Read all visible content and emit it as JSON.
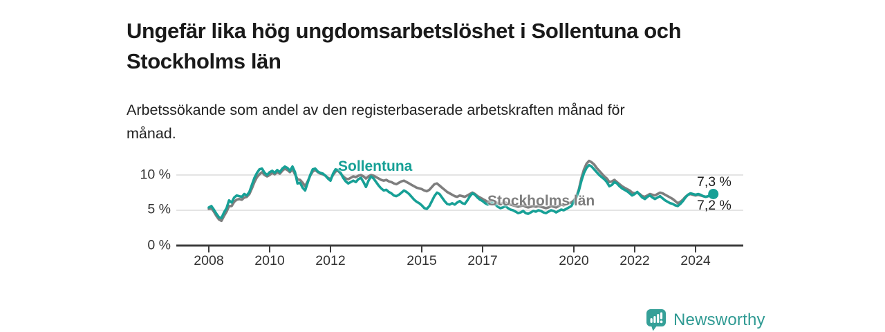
{
  "header": {
    "title": "Ungefär lika hög ungdomsarbetslöshet i Sollentuna och Stockholms län",
    "subtitle": "Arbetssökande som andel av den registerbaserade arbetskraften månad för månad."
  },
  "chart_data": {
    "type": "line",
    "unit": "%",
    "x_start": "2008-01",
    "x_frequency": "monthly",
    "x_tick_labels": [
      "2008",
      "2010",
      "2012",
      "2015",
      "2017",
      "2020",
      "2022",
      "2024"
    ],
    "x_tick_years": [
      2008,
      2010,
      2012,
      2015,
      2017,
      2020,
      2022,
      2024
    ],
    "y_tick_labels": [
      "0 %",
      "5 %",
      "10 %"
    ],
    "y_ticks": [
      0,
      5,
      10
    ],
    "ylim": [
      0,
      12.5
    ],
    "grid": "horizontal",
    "legend_position": "inline-labels",
    "series": [
      {
        "name": "Sollentuna",
        "color": "#17a096",
        "end_label": "7,3 %",
        "end_value": 7.3,
        "end_marker": "dot",
        "values": [
          5.4,
          5.6,
          5.1,
          4.5,
          4.0,
          3.9,
          4.7,
          5.3,
          6.4,
          6.1,
          6.8,
          7.1,
          7.0,
          6.9,
          7.3,
          7.1,
          7.6,
          8.6,
          9.6,
          10.3,
          10.8,
          10.9,
          10.3,
          10.0,
          10.4,
          10.6,
          10.3,
          10.7,
          10.4,
          10.9,
          11.2,
          11.0,
          10.6,
          11.2,
          10.4,
          8.8,
          8.9,
          8.2,
          7.8,
          8.9,
          10.0,
          10.8,
          10.9,
          10.5,
          10.3,
          10.2,
          9.9,
          9.5,
          9.2,
          10.2,
          10.8,
          10.7,
          10.3,
          9.6,
          9.1,
          8.8,
          9.0,
          9.2,
          9.0,
          9.4,
          9.6,
          9.0,
          8.3,
          9.2,
          9.8,
          9.5,
          9.0,
          8.5,
          8.1,
          7.8,
          7.9,
          7.6,
          7.4,
          7.1,
          7.0,
          7.2,
          7.5,
          7.8,
          7.6,
          7.3,
          6.9,
          6.5,
          6.2,
          6.0,
          5.7,
          5.3,
          5.2,
          5.6,
          6.3,
          7.0,
          7.5,
          7.3,
          6.8,
          6.3,
          5.9,
          5.8,
          6.0,
          5.8,
          6.1,
          6.3,
          6.0,
          5.9,
          6.4,
          7.0,
          7.4,
          7.2,
          6.8,
          6.5,
          6.3,
          6.0,
          5.8,
          5.9,
          6.1,
          5.8,
          5.5,
          5.3,
          5.4,
          5.6,
          5.3,
          5.1,
          5.0,
          4.8,
          4.6,
          4.7,
          4.9,
          4.6,
          4.5,
          4.7,
          4.9,
          4.8,
          5.0,
          4.9,
          4.7,
          4.6,
          4.8,
          5.0,
          4.9,
          4.7,
          4.9,
          5.1,
          5.0,
          5.2,
          5.4,
          5.6,
          6.2,
          6.8,
          7.8,
          9.2,
          10.3,
          11.0,
          11.4,
          11.2,
          10.8,
          10.4,
          10.0,
          9.7,
          9.4,
          9.0,
          8.4,
          8.6,
          9.0,
          8.8,
          8.4,
          8.1,
          7.9,
          7.7,
          7.4,
          7.1,
          7.3,
          7.6,
          7.2,
          6.8,
          6.6,
          6.9,
          7.1,
          6.8,
          6.6,
          6.8,
          7.0,
          6.7,
          6.4,
          6.2,
          6.0,
          5.9,
          5.7,
          5.6,
          5.9,
          6.3,
          6.8,
          7.2,
          7.4,
          7.3,
          7.2,
          7.3,
          7.2,
          7.0,
          6.9,
          7.0,
          7.2,
          7.3
        ]
      },
      {
        "name": "Stockholms län",
        "color": "#7e7e7e",
        "end_label": "7,2 %",
        "end_value": 7.2,
        "end_marker": "none",
        "values": [
          5.2,
          5.3,
          4.8,
          4.2,
          3.7,
          3.5,
          4.2,
          4.8,
          5.6,
          5.6,
          6.2,
          6.5,
          6.6,
          6.5,
          6.8,
          6.9,
          7.3,
          8.1,
          9.0,
          9.7,
          10.1,
          10.4,
          10.0,
          9.8,
          10.0,
          10.3,
          10.1,
          10.4,
          10.2,
          10.6,
          10.9,
          10.7,
          10.4,
          10.8,
          10.1,
          9.4,
          9.3,
          8.9,
          8.4,
          9.1,
          9.9,
          10.5,
          10.7,
          10.4,
          10.2,
          10.1,
          9.9,
          9.6,
          9.4,
          10.0,
          10.5,
          10.6,
          10.2,
          9.8,
          9.5,
          9.4,
          9.6,
          9.8,
          9.7,
          9.9,
          10.0,
          9.8,
          9.5,
          9.8,
          10.0,
          9.9,
          9.7,
          9.5,
          9.3,
          9.2,
          9.3,
          9.1,
          9.0,
          8.8,
          8.7,
          8.9,
          9.1,
          9.2,
          9.0,
          8.8,
          8.6,
          8.4,
          8.2,
          8.1,
          8.0,
          7.8,
          7.7,
          7.9,
          8.3,
          8.7,
          8.8,
          8.5,
          8.2,
          7.9,
          7.6,
          7.4,
          7.2,
          7.0,
          6.9,
          7.1,
          7.0,
          6.9,
          7.1,
          7.3,
          7.5,
          7.3,
          7.0,
          6.8,
          6.6,
          6.4,
          6.2,
          6.3,
          6.4,
          6.2,
          6.0,
          5.9,
          6.0,
          6.1,
          5.9,
          5.8,
          5.7,
          5.6,
          5.5,
          5.6,
          5.7,
          5.5,
          5.4,
          5.5,
          5.6,
          5.5,
          5.6,
          5.5,
          5.4,
          5.3,
          5.4,
          5.6,
          5.5,
          5.4,
          5.6,
          5.8,
          5.7,
          5.9,
          6.0,
          6.1,
          6.4,
          6.9,
          8.0,
          9.6,
          10.8,
          11.6,
          12.0,
          11.8,
          11.5,
          11.0,
          10.6,
          10.2,
          9.8,
          9.5,
          9.0,
          9.1,
          9.3,
          9.0,
          8.7,
          8.4,
          8.2,
          8.0,
          7.8,
          7.5,
          7.4,
          7.5,
          7.3,
          7.0,
          6.9,
          7.1,
          7.3,
          7.2,
          7.1,
          7.3,
          7.5,
          7.4,
          7.2,
          7.0,
          6.8,
          6.6,
          6.3,
          6.0,
          6.2,
          6.5,
          6.9,
          7.2,
          7.3,
          7.2,
          7.1,
          7.2,
          7.1,
          7.0,
          6.9,
          7.0,
          7.1,
          7.2
        ]
      }
    ],
    "style": {
      "grid_color": "#dbdbdb",
      "axis_color": "#3c3c3c"
    }
  },
  "branding": {
    "name": "Newsworthy",
    "color": "#2f9a93",
    "icon": "speech-bubble-bar-chart-icon"
  }
}
